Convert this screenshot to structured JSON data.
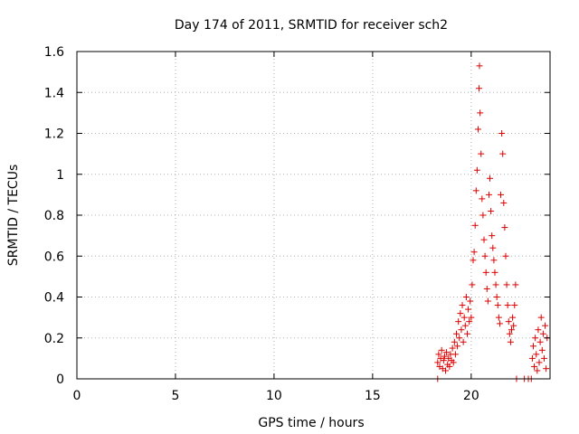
{
  "chart_data": {
    "type": "scatter",
    "title": "Day 174 of 2011, SRMTID for receiver sch2",
    "xlabel": "GPS time / hours",
    "ylabel": "SRMTID / TECUs",
    "xlim": [
      0,
      24
    ],
    "ylim": [
      0,
      1.6
    ],
    "grid": true,
    "marker": "plus",
    "series_color": "#dd0000",
    "x_ticks": [
      0,
      5,
      10,
      15,
      20
    ],
    "x_tick_labels": [
      "0",
      "5",
      "10",
      "15",
      "20"
    ],
    "y_ticks": [
      0,
      0.2,
      0.4,
      0.6,
      0.8,
      1.0,
      1.2,
      1.4,
      1.6
    ],
    "y_tick_labels": [
      "0",
      "0.2",
      "0.4",
      "0.6",
      "0.8",
      "1",
      "1.2",
      "1.4",
      "1.6"
    ],
    "series": [
      {
        "name": "SRMTID",
        "points": [
          [
            18.3,
            0.0
          ],
          [
            18.3,
            0.08
          ],
          [
            18.35,
            0.12
          ],
          [
            18.4,
            0.06
          ],
          [
            18.45,
            0.1
          ],
          [
            18.5,
            0.14
          ],
          [
            18.55,
            0.05
          ],
          [
            18.6,
            0.09
          ],
          [
            18.65,
            0.11
          ],
          [
            18.7,
            0.04
          ],
          [
            18.75,
            0.13
          ],
          [
            18.8,
            0.07
          ],
          [
            18.85,
            0.1
          ],
          [
            18.9,
            0.06
          ],
          [
            18.95,
            0.12
          ],
          [
            19.0,
            0.09
          ],
          [
            19.05,
            0.15
          ],
          [
            19.1,
            0.08
          ],
          [
            19.15,
            0.18
          ],
          [
            19.2,
            0.12
          ],
          [
            19.25,
            0.22
          ],
          [
            19.3,
            0.16
          ],
          [
            19.35,
            0.28
          ],
          [
            19.4,
            0.2
          ],
          [
            19.45,
            0.32
          ],
          [
            19.5,
            0.24
          ],
          [
            19.55,
            0.36
          ],
          [
            19.6,
            0.18
          ],
          [
            19.65,
            0.3
          ],
          [
            19.7,
            0.26
          ],
          [
            19.75,
            0.4
          ],
          [
            19.8,
            0.22
          ],
          [
            19.85,
            0.34
          ],
          [
            19.9,
            0.28
          ],
          [
            19.95,
            0.38
          ],
          [
            20.0,
            0.3
          ],
          [
            20.05,
            0.46
          ],
          [
            20.1,
            0.58
          ],
          [
            20.15,
            0.62
          ],
          [
            20.2,
            0.75
          ],
          [
            20.25,
            0.92
          ],
          [
            20.3,
            1.02
          ],
          [
            20.35,
            1.22
          ],
          [
            20.4,
            1.42
          ],
          [
            20.42,
            1.53
          ],
          [
            20.45,
            1.3
          ],
          [
            20.5,
            1.1
          ],
          [
            20.55,
            0.88
          ],
          [
            20.6,
            0.8
          ],
          [
            20.65,
            0.68
          ],
          [
            20.7,
            0.6
          ],
          [
            20.75,
            0.52
          ],
          [
            20.8,
            0.44
          ],
          [
            20.85,
            0.38
          ],
          [
            20.9,
            0.9
          ],
          [
            20.95,
            0.98
          ],
          [
            21.0,
            0.82
          ],
          [
            21.05,
            0.7
          ],
          [
            21.1,
            0.64
          ],
          [
            21.15,
            0.58
          ],
          [
            21.2,
            0.52
          ],
          [
            21.25,
            0.46
          ],
          [
            21.3,
            0.4
          ],
          [
            21.35,
            0.36
          ],
          [
            21.4,
            0.3
          ],
          [
            21.45,
            0.27
          ],
          [
            21.5,
            0.9
          ],
          [
            21.55,
            1.2
          ],
          [
            21.6,
            1.1
          ],
          [
            21.65,
            0.86
          ],
          [
            21.7,
            0.74
          ],
          [
            21.75,
            0.6
          ],
          [
            21.8,
            0.46
          ],
          [
            21.85,
            0.36
          ],
          [
            21.9,
            0.28
          ],
          [
            21.95,
            0.22
          ],
          [
            22.0,
            0.18
          ],
          [
            22.05,
            0.24
          ],
          [
            22.1,
            0.3
          ],
          [
            22.15,
            0.26
          ],
          [
            22.2,
            0.36
          ],
          [
            22.25,
            0.46
          ],
          [
            22.3,
            0.0
          ],
          [
            22.7,
            0.0
          ],
          [
            22.9,
            0.0
          ],
          [
            23.05,
            0.0
          ],
          [
            23.1,
            0.1
          ],
          [
            23.15,
            0.16
          ],
          [
            23.2,
            0.06
          ],
          [
            23.25,
            0.2
          ],
          [
            23.3,
            0.12
          ],
          [
            23.35,
            0.04
          ],
          [
            23.4,
            0.24
          ],
          [
            23.45,
            0.08
          ],
          [
            23.5,
            0.18
          ],
          [
            23.55,
            0.3
          ],
          [
            23.6,
            0.14
          ],
          [
            23.65,
            0.22
          ],
          [
            23.7,
            0.1
          ],
          [
            23.75,
            0.26
          ],
          [
            23.8,
            0.05
          ],
          [
            23.85,
            0.2
          ]
        ]
      }
    ]
  }
}
